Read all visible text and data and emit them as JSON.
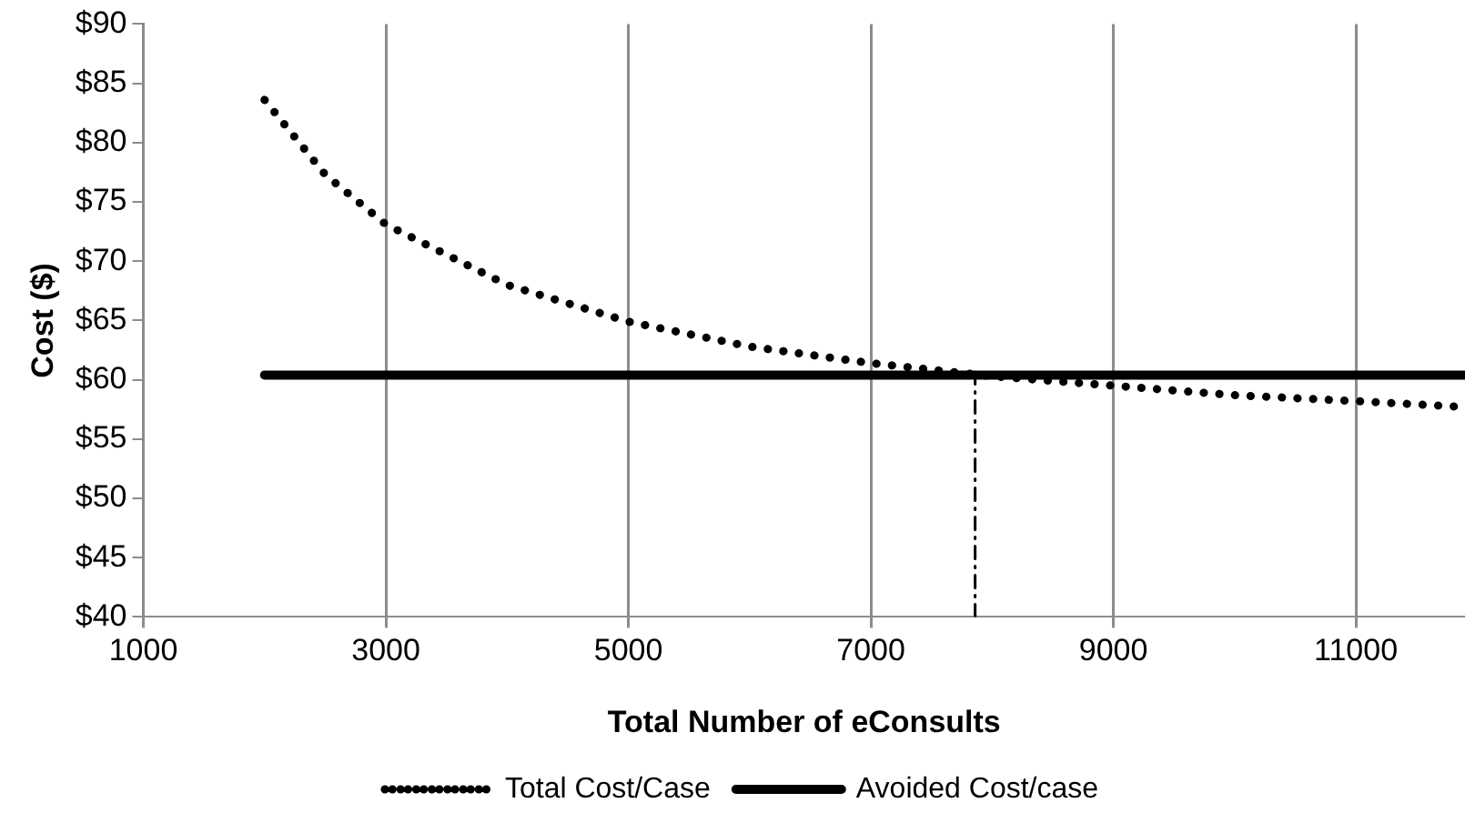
{
  "chart_data": {
    "type": "line",
    "xlabel": "Total Number of eConsults",
    "ylabel": "Cost ($)",
    "xlim": [
      1000,
      11900
    ],
    "xticks": [
      1000,
      3000,
      5000,
      7000,
      9000,
      11000
    ],
    "ylim": [
      40,
      90
    ],
    "yticks": [
      {
        "value": 40,
        "label": "$40"
      },
      {
        "value": 45,
        "label": "$45"
      },
      {
        "value": 50,
        "label": "$50"
      },
      {
        "value": 55,
        "label": "$55"
      },
      {
        "value": 60,
        "label": "$60"
      },
      {
        "value": 65,
        "label": "$65"
      },
      {
        "value": 70,
        "label": "$70"
      },
      {
        "value": 75,
        "label": "$75"
      },
      {
        "value": 80,
        "label": "$80"
      },
      {
        "value": 85,
        "label": "$85"
      },
      {
        "value": 90,
        "label": "$90"
      }
    ],
    "grid": "x",
    "legend": "bottom",
    "marker": "none",
    "series": [
      {
        "name": "Total Cost/Case",
        "color": "#000000",
        "line_style": "dotted",
        "x": [
          2000,
          2500,
          3000,
          4000,
          5000,
          6000,
          7000,
          8000,
          9000,
          10000,
          11000,
          11900
        ],
        "values": [
          83.6,
          77.3,
          73.1,
          68,
          64.9,
          62.8,
          61.4,
          60.3,
          59.5,
          58.7,
          58.2,
          57.7
        ]
      },
      {
        "name": "Avoided Cost/case",
        "color": "#000000",
        "line_style": "solid",
        "x": [
          2000,
          11900
        ],
        "values": [
          60.4,
          60.4
        ]
      },
      {
        "color": "#000000",
        "line_style": "dashed",
        "x": [
          7860,
          7860
        ],
        "values": [
          40,
          60.4
        ]
      }
    ]
  }
}
